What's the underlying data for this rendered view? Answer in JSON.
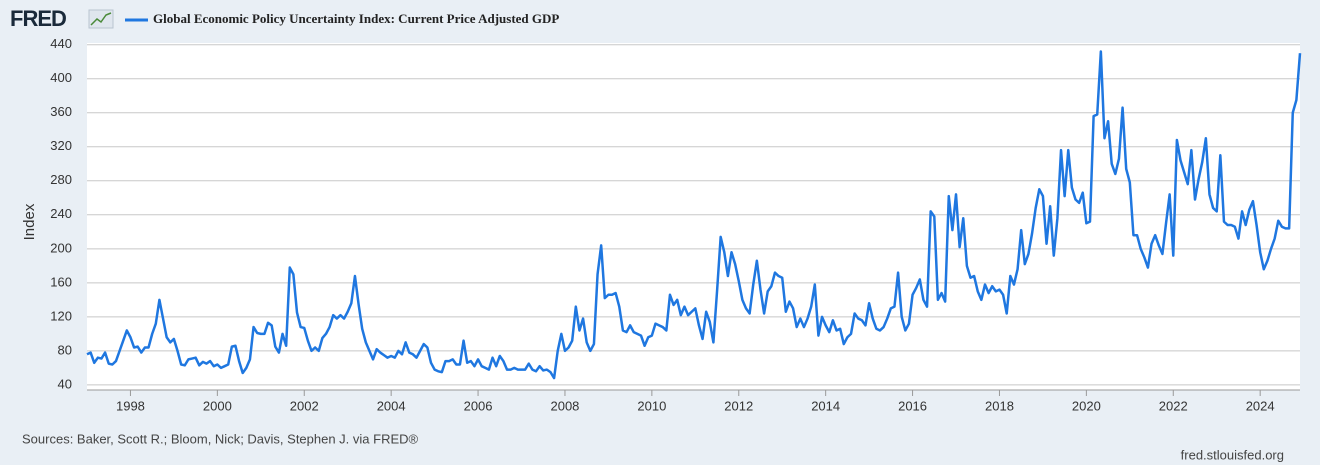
{
  "logo": "FRED",
  "chart_data": {
    "type": "line",
    "y_label": "Index",
    "source": "Sources: Baker, Scott R.; Bloom, Nick; Davis, Stephen J. via FRED®",
    "credit": "fred.stlouisfed.org",
    "x": [
      "1997-01",
      "1997-02",
      "1997-03",
      "1997-04",
      "1997-05",
      "1997-06",
      "1997-07",
      "1997-08",
      "1997-09",
      "1997-10",
      "1997-11",
      "1997-12",
      "1998-01",
      "1998-02",
      "1998-03",
      "1998-04",
      "1998-05",
      "1998-06",
      "1998-07",
      "1998-08",
      "1998-09",
      "1998-10",
      "1998-11",
      "1998-12",
      "1999-01",
      "1999-02",
      "1999-03",
      "1999-04",
      "1999-05",
      "1999-06",
      "1999-07",
      "1999-08",
      "1999-09",
      "1999-10",
      "1999-11",
      "1999-12",
      "2000-01",
      "2000-02",
      "2000-03",
      "2000-04",
      "2000-05",
      "2000-06",
      "2000-07",
      "2000-08",
      "2000-09",
      "2000-10",
      "2000-11",
      "2000-12",
      "2001-01",
      "2001-02",
      "2001-03",
      "2001-04",
      "2001-05",
      "2001-06",
      "2001-07",
      "2001-08",
      "2001-09",
      "2001-10",
      "2001-11",
      "2001-12",
      "2002-01",
      "2002-02",
      "2002-03",
      "2002-04",
      "2002-05",
      "2002-06",
      "2002-07",
      "2002-08",
      "2002-09",
      "2002-10",
      "2002-11",
      "2002-12",
      "2003-01",
      "2003-02",
      "2003-03",
      "2003-04",
      "2003-05",
      "2003-06",
      "2003-07",
      "2003-08",
      "2003-09",
      "2003-10",
      "2003-11",
      "2003-12",
      "2004-01",
      "2004-02",
      "2004-03",
      "2004-04",
      "2004-05",
      "2004-06",
      "2004-07",
      "2004-08",
      "2004-09",
      "2004-10",
      "2004-11",
      "2004-12",
      "2005-01",
      "2005-02",
      "2005-03",
      "2005-04",
      "2005-05",
      "2005-06",
      "2005-07",
      "2005-08",
      "2005-09",
      "2005-10",
      "2005-11",
      "2005-12",
      "2006-01",
      "2006-02",
      "2006-03",
      "2006-04",
      "2006-05",
      "2006-06",
      "2006-07",
      "2006-08",
      "2006-09",
      "2006-10",
      "2006-11",
      "2006-12",
      "2007-01",
      "2007-02",
      "2007-03",
      "2007-04",
      "2007-05",
      "2007-06",
      "2007-07",
      "2007-08",
      "2007-09",
      "2007-10",
      "2007-11",
      "2007-12",
      "2008-01",
      "2008-02",
      "2008-03",
      "2008-04",
      "2008-05",
      "2008-06",
      "2008-07",
      "2008-08",
      "2008-09",
      "2008-10",
      "2008-11",
      "2008-12",
      "2009-01",
      "2009-02",
      "2009-03",
      "2009-04",
      "2009-05",
      "2009-06",
      "2009-07",
      "2009-08",
      "2009-09",
      "2009-10",
      "2009-11",
      "2009-12",
      "2010-01",
      "2010-02",
      "2010-03",
      "2010-04",
      "2010-05",
      "2010-06",
      "2010-07",
      "2010-08",
      "2010-09",
      "2010-10",
      "2010-11",
      "2010-12",
      "2011-01",
      "2011-02",
      "2011-03",
      "2011-04",
      "2011-05",
      "2011-06",
      "2011-07",
      "2011-08",
      "2011-09",
      "2011-10",
      "2011-11",
      "2011-12",
      "2012-01",
      "2012-02",
      "2012-03",
      "2012-04",
      "2012-05",
      "2012-06",
      "2012-07",
      "2012-08",
      "2012-09",
      "2012-10",
      "2012-11",
      "2012-12",
      "2013-01",
      "2013-02",
      "2013-03",
      "2013-04",
      "2013-05",
      "2013-06",
      "2013-07",
      "2013-08",
      "2013-09",
      "2013-10",
      "2013-11",
      "2013-12",
      "2014-01",
      "2014-02",
      "2014-03",
      "2014-04",
      "2014-05",
      "2014-06",
      "2014-07",
      "2014-08",
      "2014-09",
      "2014-10",
      "2014-11",
      "2014-12",
      "2015-01",
      "2015-02",
      "2015-03",
      "2015-04",
      "2015-05",
      "2015-06",
      "2015-07",
      "2015-08",
      "2015-09",
      "2015-10",
      "2015-11",
      "2015-12",
      "2016-01",
      "2016-02",
      "2016-03",
      "2016-04",
      "2016-05",
      "2016-06",
      "2016-07",
      "2016-08",
      "2016-09",
      "2016-10",
      "2016-11",
      "2016-12",
      "2017-01",
      "2017-02",
      "2017-03",
      "2017-04",
      "2017-05",
      "2017-06",
      "2017-07",
      "2017-08",
      "2017-09",
      "2017-10",
      "2017-11",
      "2017-12",
      "2018-01",
      "2018-02",
      "2018-03",
      "2018-04",
      "2018-05",
      "2018-06",
      "2018-07",
      "2018-08",
      "2018-09",
      "2018-10",
      "2018-11",
      "2018-12",
      "2019-01",
      "2019-02",
      "2019-03",
      "2019-04",
      "2019-05",
      "2019-06",
      "2019-07",
      "2019-08",
      "2019-09",
      "2019-10",
      "2019-11",
      "2019-12",
      "2020-01",
      "2020-02",
      "2020-03",
      "2020-04",
      "2020-05",
      "2020-06",
      "2020-07",
      "2020-08",
      "2020-09",
      "2020-10",
      "2020-11",
      "2020-12",
      "2021-01",
      "2021-02",
      "2021-03",
      "2021-04",
      "2021-05",
      "2021-06",
      "2021-07",
      "2021-08",
      "2021-09",
      "2021-10",
      "2021-11",
      "2021-12",
      "2022-01",
      "2022-02",
      "2022-03",
      "2022-04",
      "2022-05",
      "2022-06",
      "2022-07",
      "2022-08",
      "2022-09",
      "2022-10",
      "2022-11",
      "2022-12",
      "2023-01",
      "2023-02",
      "2023-03",
      "2023-04",
      "2023-05",
      "2023-06",
      "2023-07",
      "2023-08",
      "2023-09",
      "2023-10",
      "2023-11",
      "2023-12",
      "2024-01",
      "2024-02",
      "2024-03",
      "2024-04",
      "2024-05",
      "2024-06",
      "2024-07",
      "2024-08",
      "2024-09",
      "2024-10",
      "2024-11",
      "2024-12"
    ],
    "series": [
      {
        "name": "Global Economic Policy Uncertainty Index: Current Price Adjusted GDP",
        "color": "#1f77e0",
        "values": [
          76,
          78,
          66,
          72,
          71,
          78,
          65,
          64,
          68,
          80,
          92,
          104,
          96,
          84,
          85,
          78,
          84,
          84,
          100,
          112,
          140,
          118,
          96,
          90,
          94,
          80,
          64,
          63,
          70,
          71,
          72,
          63,
          67,
          65,
          68,
          62,
          64,
          60,
          62,
          64,
          85,
          86,
          68,
          54,
          60,
          70,
          108,
          101,
          100,
          100,
          113,
          110,
          85,
          78,
          100,
          86,
          178,
          170,
          125,
          108,
          107,
          92,
          80,
          84,
          80,
          95,
          100,
          108,
          122,
          118,
          122,
          118,
          126,
          136,
          168,
          135,
          106,
          90,
          80,
          70,
          82,
          78,
          75,
          72,
          74,
          72,
          80,
          76,
          90,
          78,
          76,
          72,
          80,
          88,
          84,
          66,
          58,
          56,
          55,
          68,
          68,
          70,
          64,
          64,
          92,
          66,
          68,
          62,
          70,
          62,
          60,
          58,
          72,
          62,
          74,
          68,
          58,
          58,
          60,
          58,
          58,
          58,
          65,
          58,
          56,
          62,
          57,
          58,
          55,
          48,
          80,
          100,
          80,
          84,
          92,
          132,
          104,
          118,
          90,
          80,
          88,
          170,
          204,
          142,
          146,
          146,
          148,
          132,
          104,
          102,
          110,
          102,
          100,
          98,
          86,
          96,
          98,
          112,
          110,
          108,
          104,
          146,
          134,
          140,
          122,
          132,
          122,
          126,
          130,
          110,
          94,
          126,
          114,
          90,
          150,
          214,
          196,
          168,
          196,
          182,
          162,
          140,
          130,
          124,
          158,
          186,
          152,
          124,
          150,
          156,
          172,
          168,
          166,
          126,
          138,
          130,
          108,
          118,
          108,
          118,
          132,
          158,
          98,
          120,
          110,
          102,
          116,
          104,
          106,
          88,
          96,
          100,
          124,
          118,
          116,
          110,
          136,
          118,
          106,
          104,
          108,
          118,
          130,
          132,
          172,
          120,
          104,
          112,
          146,
          154,
          164,
          140,
          132,
          244,
          238,
          140,
          148,
          138,
          262,
          222,
          264,
          202,
          236,
          180,
          166,
          168,
          150,
          140,
          158,
          148,
          156,
          150,
          152,
          146,
          124,
          168,
          158,
          176,
          222,
          182,
          194,
          218,
          248,
          270,
          262,
          206,
          250,
          192,
          236,
          316,
          262,
          316,
          272,
          258,
          254,
          266,
          230,
          232,
          356,
          358,
          432,
          330,
          350,
          300,
          288,
          306,
          366,
          294,
          278,
          216,
          216,
          200,
          190,
          178,
          206,
          216,
          204,
          194,
          230,
          264,
          192,
          328,
          304,
          290,
          276,
          316,
          258,
          282,
          302,
          330,
          264,
          248,
          244,
          310,
          232,
          228,
          228,
          226,
          212,
          244,
          228,
          246,
          256,
          228,
          196,
          176,
          186,
          200,
          212,
          233,
          226,
          224,
          224,
          360,
          375,
          430
        ]
      }
    ],
    "xlim": [
      "1997-01",
      "2024-12"
    ],
    "xticks": [
      1998,
      2000,
      2002,
      2004,
      2006,
      2008,
      2010,
      2012,
      2014,
      2016,
      2018,
      2020,
      2022,
      2024
    ],
    "ylim": [
      34,
      442
    ],
    "yticks": [
      40,
      80,
      120,
      160,
      200,
      240,
      280,
      320,
      360,
      400,
      440
    ],
    "grid": true
  }
}
